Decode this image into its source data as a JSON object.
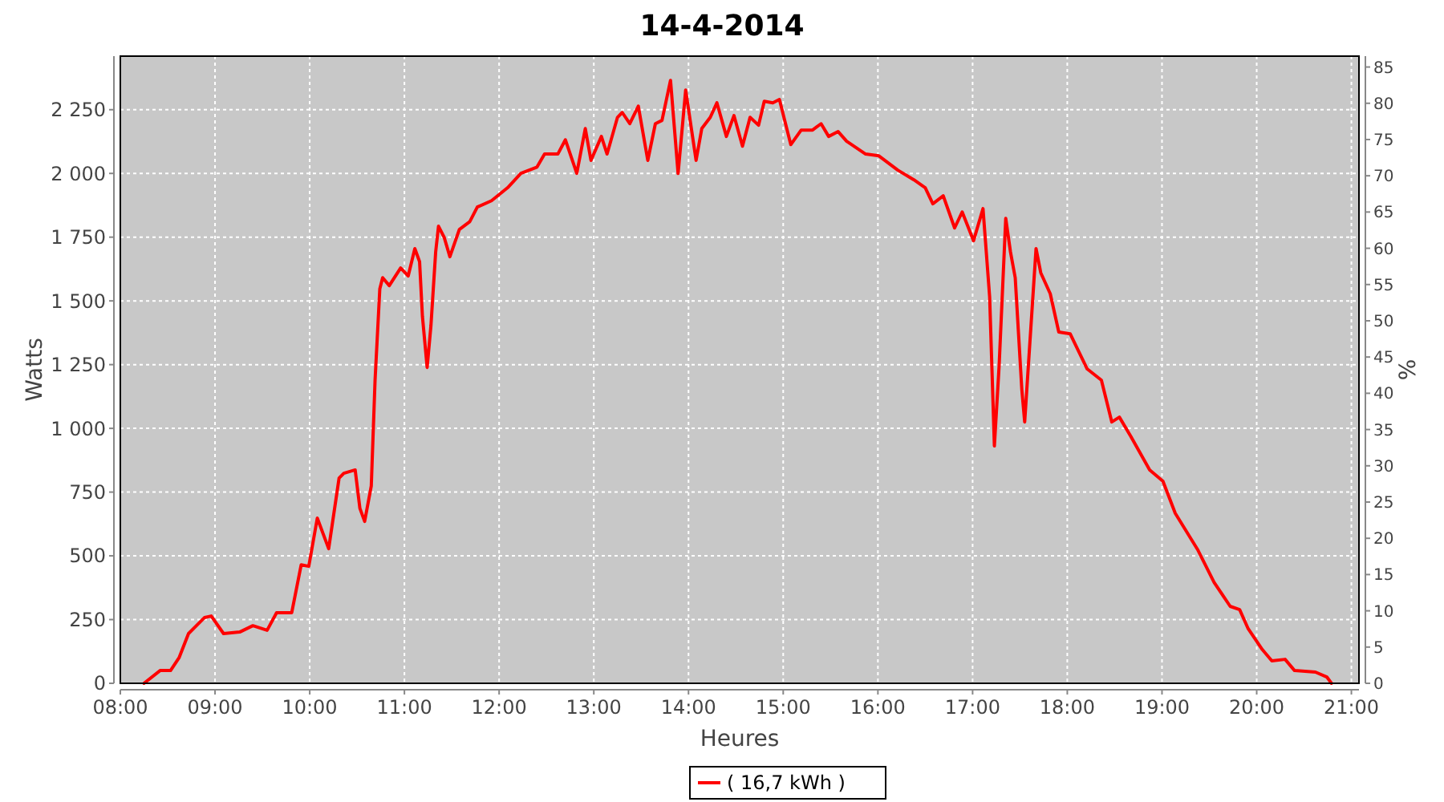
{
  "chart_data": {
    "type": "line",
    "title": "14-4-2014",
    "xlabel": "Heures",
    "ylabel": "Watts",
    "y2label": "%",
    "xlim": [
      8.0,
      21.08
    ],
    "ylim": [
      0,
      2460
    ],
    "y2lim": [
      0,
      86.5
    ],
    "xticks": [
      {
        "value": 8,
        "label": "08:00"
      },
      {
        "value": 9,
        "label": "09:00"
      },
      {
        "value": 10,
        "label": "10:00"
      },
      {
        "value": 11,
        "label": "11:00"
      },
      {
        "value": 12,
        "label": "12:00"
      },
      {
        "value": 13,
        "label": "13:00"
      },
      {
        "value": 14,
        "label": "14:00"
      },
      {
        "value": 15,
        "label": "15:00"
      },
      {
        "value": 16,
        "label": "16:00"
      },
      {
        "value": 17,
        "label": "17:00"
      },
      {
        "value": 18,
        "label": "18:00"
      },
      {
        "value": 19,
        "label": "19:00"
      },
      {
        "value": 20,
        "label": "20:00"
      },
      {
        "value": 21,
        "label": "21:00"
      }
    ],
    "yticks": [
      0,
      250,
      500,
      750,
      {
        "value": 1000,
        "label": "1 000"
      },
      {
        "value": 1250,
        "label": "1 250"
      },
      {
        "value": 1500,
        "label": "1 500"
      },
      {
        "value": 1750,
        "label": "1 750"
      },
      {
        "value": 2000,
        "label": "2 000"
      },
      {
        "value": 2250,
        "label": "2 250"
      }
    ],
    "y2ticks": [
      0,
      5,
      10,
      15,
      20,
      25,
      30,
      35,
      40,
      45,
      50,
      55,
      60,
      65,
      70,
      75,
      80,
      85
    ],
    "grid": true,
    "legend": "bottom",
    "marker": "none",
    "line_style": "solid",
    "x": [
      8.25,
      8.42,
      8.53,
      8.62,
      8.72,
      8.89,
      8.96,
      9.09,
      9.26,
      9.4,
      9.55,
      9.65,
      9.81,
      9.91,
      9.99,
      10.08,
      10.2,
      10.31,
      10.36,
      10.48,
      10.53,
      10.58,
      10.65,
      10.69,
      10.74,
      10.77,
      10.84,
      10.96,
      11.04,
      11.11,
      11.16,
      11.19,
      11.24,
      11.28,
      11.33,
      11.36,
      11.42,
      11.48,
      11.58,
      11.69,
      11.77,
      11.92,
      12.09,
      12.23,
      12.4,
      12.48,
      12.62,
      12.7,
      12.82,
      12.91,
      12.97,
      13.08,
      13.14,
      13.25,
      13.3,
      13.38,
      13.47,
      13.57,
      13.65,
      13.72,
      13.81,
      13.89,
      13.97,
      14.08,
      14.14,
      14.23,
      14.3,
      14.4,
      14.48,
      14.57,
      14.65,
      14.74,
      14.8,
      14.89,
      14.96,
      15.08,
      15.19,
      15.31,
      15.4,
      15.48,
      15.58,
      15.67,
      15.87,
      16.01,
      16.21,
      16.38,
      16.5,
      16.58,
      16.69,
      16.81,
      16.89,
      17.01,
      17.11,
      17.18,
      17.23,
      17.28,
      17.35,
      17.4,
      17.45,
      17.52,
      17.55,
      17.62,
      17.67,
      17.72,
      17.82,
      17.91,
      18.03,
      18.21,
      18.36,
      18.47,
      18.55,
      18.67,
      18.87,
      19.01,
      19.14,
      19.38,
      19.55,
      19.72,
      19.82,
      19.91,
      20.06,
      20.16,
      20.3,
      20.4,
      20.62,
      20.74,
      20.79
    ],
    "series": [
      {
        "name": "( 16,7 kWh )",
        "color": "#ff0000",
        "values": [
          0,
          50,
          50,
          100,
          195,
          258,
          264,
          195,
          201,
          226,
          208,
          277,
          277,
          465,
          459,
          648,
          528,
          805,
          824,
          837,
          686,
          635,
          774,
          1189,
          1547,
          1591,
          1560,
          1629,
          1598,
          1705,
          1654,
          1440,
          1239,
          1403,
          1692,
          1793,
          1749,
          1673,
          1780,
          1811,
          1868,
          1893,
          1944,
          2000,
          2025,
          2076,
          2076,
          2132,
          2000,
          2176,
          2051,
          2145,
          2076,
          2220,
          2239,
          2195,
          2264,
          2051,
          2195,
          2208,
          2365,
          2000,
          2327,
          2051,
          2176,
          2220,
          2277,
          2145,
          2227,
          2107,
          2220,
          2189,
          2283,
          2277,
          2290,
          2113,
          2170,
          2170,
          2195,
          2145,
          2164,
          2126,
          2076,
          2069,
          2013,
          1975,
          1944,
          1881,
          1912,
          1786,
          1849,
          1736,
          1862,
          1516,
          931,
          1245,
          1824,
          1692,
          1591,
          1151,
          1025,
          1422,
          1705,
          1610,
          1528,
          1378,
          1371,
          1233,
          1189,
          1025,
          1044,
          969,
          837,
          793,
          667,
          522,
          396,
          302,
          289,
          214,
          132,
          88,
          94,
          50,
          44,
          25,
          0
        ]
      }
    ]
  }
}
